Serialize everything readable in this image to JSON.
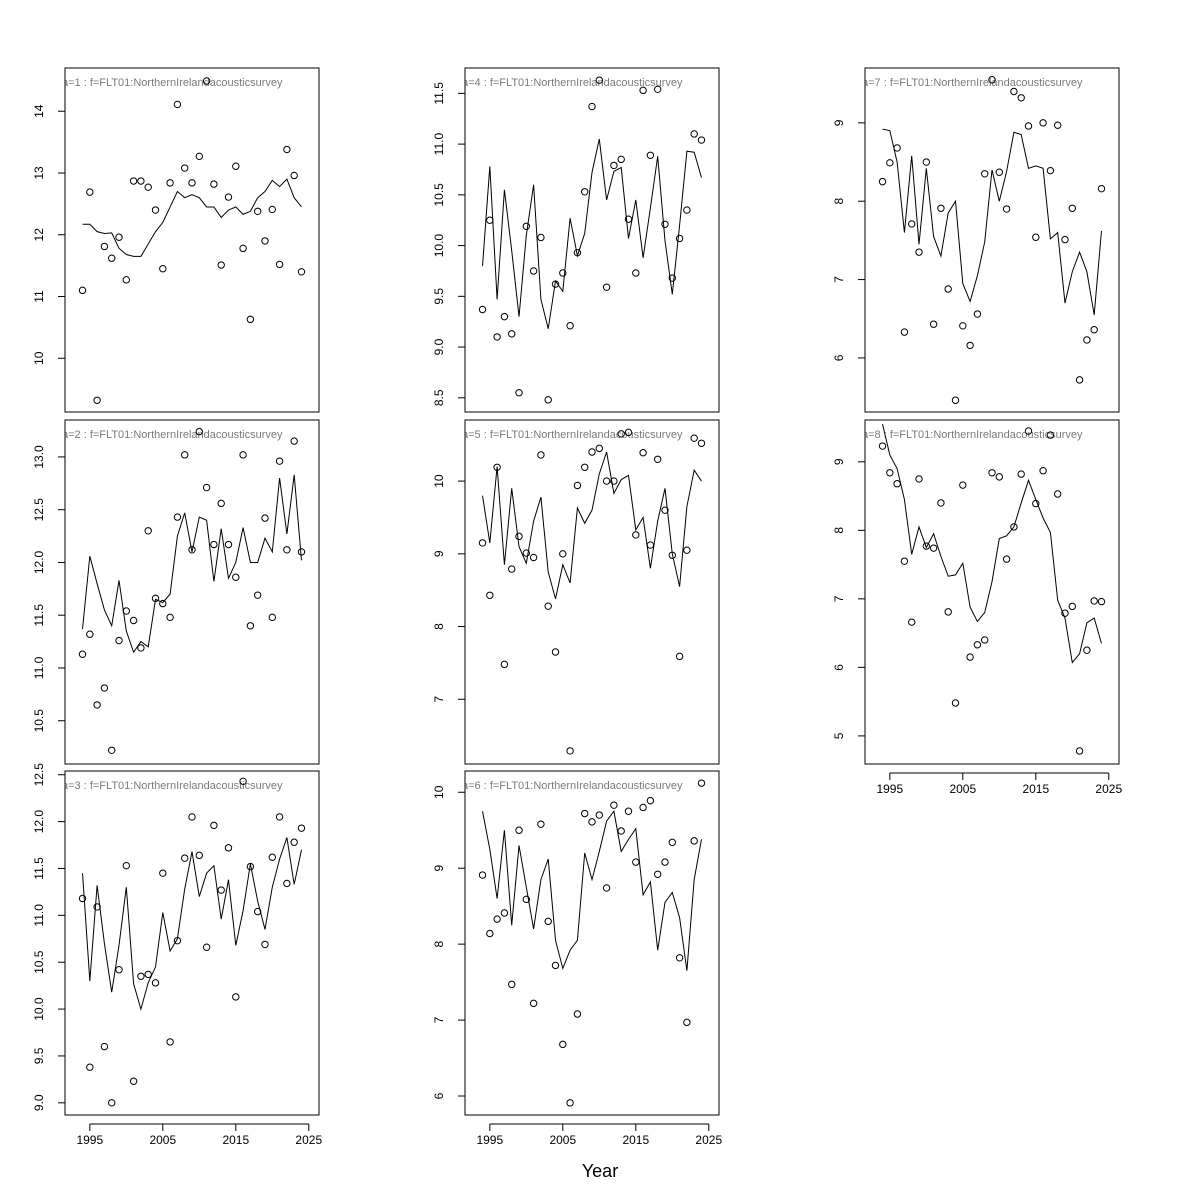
{
  "xlabel": "Year",
  "chart_data": [
    {
      "type": "line",
      "title": "a=1  :  f=FLT01:NorthernIrelandacousticsurvey",
      "x": [
        1994,
        1995,
        1996,
        1997,
        1998,
        1999,
        2000,
        2001,
        2002,
        2003,
        2004,
        2005,
        2006,
        2007,
        2008,
        2009,
        2010,
        2011,
        2012,
        2013,
        2014,
        2015,
        2016,
        2017,
        2018,
        2019,
        2020,
        2021,
        2022,
        2023,
        2024
      ],
      "series": [
        {
          "style": "points",
          "color": "#000000",
          "values": [
            11.1,
            12.69,
            9.32,
            11.81,
            11.62,
            11.96,
            11.27,
            12.87,
            12.87,
            12.77,
            12.4,
            11.45,
            12.84,
            14.11,
            13.08,
            12.84,
            13.27,
            14.49,
            12.82,
            11.51,
            12.61,
            13.11,
            11.78,
            10.63,
            12.38,
            11.9,
            12.41,
            11.52,
            13.38,
            12.96,
            11.4
          ]
        },
        {
          "style": "line",
          "color": "#000000",
          "values": [
            12.17,
            12.17,
            12.05,
            12.02,
            12.03,
            11.78,
            11.68,
            11.65,
            11.65,
            11.85,
            12.05,
            12.2,
            12.45,
            12.7,
            12.6,
            12.65,
            12.6,
            12.45,
            12.45,
            12.28,
            12.4,
            12.45,
            12.33,
            12.38,
            12.6,
            12.7,
            12.88,
            12.78,
            12.9,
            12.6,
            12.45
          ]
        }
      ],
      "xlim": [
        1991.6,
        2026.4
      ],
      "ylim": [
        9.13,
        14.7
      ],
      "yticks": [
        10,
        11,
        12,
        13,
        14
      ]
    },
    {
      "type": "line",
      "title": "a=2  :  f=FLT01:NorthernIrelandacousticsurvey",
      "x": [
        1994,
        1995,
        1996,
        1997,
        1998,
        1999,
        2000,
        2001,
        2002,
        2003,
        2004,
        2005,
        2006,
        2007,
        2008,
        2009,
        2010,
        2011,
        2012,
        2013,
        2014,
        2015,
        2016,
        2017,
        2018,
        2019,
        2020,
        2021,
        2022,
        2023,
        2024
      ],
      "series": [
        {
          "style": "points",
          "color": "#000000",
          "values": [
            11.13,
            11.32,
            10.65,
            10.81,
            10.22,
            11.26,
            11.54,
            11.45,
            11.19,
            12.3,
            11.66,
            11.61,
            11.48,
            12.43,
            13.02,
            12.12,
            13.24,
            12.71,
            12.17,
            12.56,
            12.17,
            11.86,
            13.02,
            11.4,
            11.69,
            12.42,
            11.48,
            12.96,
            12.12,
            13.15,
            12.1
          ]
        },
        {
          "style": "line",
          "color": "#000000",
          "values": [
            11.37,
            12.06,
            11.8,
            11.55,
            11.4,
            11.83,
            11.35,
            11.15,
            11.25,
            11.2,
            11.65,
            11.62,
            11.7,
            12.25,
            12.47,
            12.1,
            12.43,
            12.4,
            11.82,
            12.32,
            11.85,
            12.0,
            12.33,
            12.0,
            12.0,
            12.23,
            12.1,
            12.8,
            12.27,
            12.83,
            12.02
          ]
        }
      ],
      "xlim": [
        1991.6,
        2026.4
      ],
      "ylim": [
        10.09,
        13.35
      ],
      "yticks": [
        10.5,
        {
          "value": 11,
          "label": "11.0"
        },
        11.5,
        {
          "value": 12,
          "label": "12.0"
        },
        12.5,
        {
          "value": 13,
          "label": "13.0"
        }
      ]
    },
    {
      "type": "line",
      "title": "a=3  :  f=FLT01:NorthernIrelandacousticsurvey",
      "x": [
        1994,
        1995,
        1996,
        1997,
        1998,
        1999,
        2000,
        2001,
        2002,
        2003,
        2004,
        2005,
        2006,
        2007,
        2008,
        2009,
        2010,
        2011,
        2012,
        2013,
        2014,
        2015,
        2016,
        2017,
        2018,
        2019,
        2020,
        2021,
        2022,
        2023,
        2024
      ],
      "series": [
        {
          "style": "points",
          "color": "#000000",
          "values": [
            11.18,
            9.38,
            11.09,
            9.6,
            9.0,
            10.42,
            11.53,
            9.23,
            10.35,
            10.37,
            10.28,
            11.45,
            9.65,
            10.73,
            11.61,
            12.05,
            11.64,
            10.66,
            11.96,
            11.27,
            11.72,
            10.13,
            12.43,
            11.52,
            11.04,
            10.69,
            11.62,
            12.05,
            11.34,
            11.78,
            11.93
          ]
        },
        {
          "style": "line",
          "color": "#000000",
          "values": [
            11.45,
            10.3,
            11.32,
            10.7,
            10.18,
            10.68,
            11.3,
            10.27,
            10.0,
            10.28,
            10.45,
            11.03,
            10.62,
            10.75,
            11.28,
            11.68,
            11.2,
            11.45,
            11.53,
            10.96,
            11.38,
            10.68,
            11.05,
            11.55,
            11.15,
            10.85,
            11.3,
            11.6,
            11.83,
            11.33,
            11.7
          ]
        }
      ],
      "xlim": [
        1991.6,
        2026.4
      ],
      "ylim": [
        8.87,
        12.54
      ],
      "yticks": [
        {
          "value": 9,
          "label": "9.0"
        },
        9.5,
        {
          "value": 10,
          "label": "10.0"
        },
        10.5,
        {
          "value": 11,
          "label": "11.0"
        },
        11.5,
        {
          "value": 12,
          "label": "12.0"
        },
        12.5
      ],
      "xticks": [
        1995,
        2005,
        2015,
        2025
      ]
    },
    {
      "type": "line",
      "title": "a=4  :  f=FLT01:NorthernIrelandacousticsurvey",
      "x": [
        1994,
        1995,
        1996,
        1997,
        1998,
        1999,
        2000,
        2001,
        2002,
        2003,
        2004,
        2005,
        2006,
        2007,
        2008,
        2009,
        2010,
        2011,
        2012,
        2013,
        2014,
        2015,
        2016,
        2017,
        2018,
        2019,
        2020,
        2021,
        2022,
        2023,
        2024
      ],
      "series": [
        {
          "style": "points",
          "color": "#000000",
          "values": [
            9.37,
            10.25,
            9.1,
            9.3,
            9.13,
            8.55,
            10.19,
            9.75,
            10.08,
            8.48,
            9.62,
            9.73,
            9.21,
            9.93,
            10.53,
            11.37,
            11.63,
            9.59,
            10.79,
            10.85,
            10.26,
            9.73,
            11.53,
            10.89,
            11.54,
            10.21,
            9.68,
            10.07,
            10.35,
            11.1,
            11.04
          ]
        },
        {
          "style": "line",
          "color": "#000000",
          "values": [
            9.8,
            10.78,
            9.47,
            10.55,
            9.95,
            9.3,
            10.1,
            10.6,
            9.47,
            9.18,
            9.65,
            9.55,
            10.27,
            9.9,
            10.12,
            10.72,
            11.05,
            10.45,
            10.73,
            10.77,
            10.07,
            10.45,
            9.88,
            10.37,
            10.88,
            10.05,
            9.52,
            10.2,
            10.93,
            10.92,
            10.67
          ]
        }
      ],
      "xlim": [
        1991.6,
        2026.4
      ],
      "ylim": [
        8.36,
        11.75
      ],
      "yticks": [
        8.5,
        {
          "value": 9,
          "label": "9.0"
        },
        9.5,
        {
          "value": 10,
          "label": "10.0"
        },
        10.5,
        {
          "value": 11,
          "label": "11.0"
        },
        11.5
      ]
    },
    {
      "type": "line",
      "title": "a=5  :  f=FLT01:NorthernIrelandacousticsurvey",
      "x": [
        1994,
        1995,
        1996,
        1997,
        1998,
        1999,
        2000,
        2001,
        2002,
        2003,
        2004,
        2005,
        2006,
        2007,
        2008,
        2009,
        2010,
        2011,
        2012,
        2013,
        2014,
        2015,
        2016,
        2017,
        2018,
        2019,
        2020,
        2021,
        2022,
        2023,
        2024
      ],
      "series": [
        {
          "style": "points",
          "color": "#000000",
          "values": [
            9.15,
            8.43,
            10.19,
            7.48,
            8.79,
            9.24,
            9.01,
            8.95,
            10.36,
            8.28,
            7.65,
            9.0,
            6.29,
            9.94,
            10.19,
            10.4,
            10.45,
            10.0,
            10.0,
            10.65,
            10.67,
            9.26,
            10.39,
            9.12,
            10.3,
            9.6,
            8.98,
            7.59,
            9.05,
            10.59,
            10.52
          ]
        },
        {
          "style": "line",
          "color": "#000000",
          "values": [
            9.8,
            9.15,
            10.2,
            8.85,
            9.9,
            9.1,
            8.87,
            9.45,
            9.78,
            8.75,
            8.38,
            8.85,
            8.6,
            9.63,
            9.42,
            9.6,
            10.1,
            10.4,
            9.83,
            10.02,
            10.08,
            9.33,
            9.5,
            8.8,
            9.45,
            9.9,
            9.0,
            8.55,
            9.65,
            10.15,
            10.0
          ]
        }
      ],
      "xlim": [
        1991.6,
        2026.4
      ],
      "ylim": [
        6.11,
        10.84
      ],
      "yticks": [
        7,
        8,
        9,
        10
      ]
    },
    {
      "type": "line",
      "title": "a=6  :  f=FLT01:NorthernIrelandacousticsurvey",
      "x": [
        1994,
        1995,
        1996,
        1997,
        1998,
        1999,
        2000,
        2001,
        2002,
        2003,
        2004,
        2005,
        2006,
        2007,
        2008,
        2009,
        2010,
        2011,
        2012,
        2013,
        2014,
        2015,
        2016,
        2017,
        2018,
        2019,
        2020,
        2021,
        2022,
        2023,
        2024
      ],
      "series": [
        {
          "style": "points",
          "color": "#000000",
          "values": [
            8.91,
            8.14,
            8.33,
            8.41,
            7.47,
            9.5,
            8.59,
            7.22,
            9.58,
            8.3,
            7.72,
            6.68,
            5.91,
            7.08,
            9.72,
            9.61,
            9.7,
            8.74,
            9.83,
            9.49,
            9.75,
            9.08,
            9.8,
            9.89,
            8.92,
            9.08,
            9.34,
            7.82,
            6.97,
            9.36,
            10.12
          ]
        },
        {
          "style": "line",
          "color": "#000000",
          "values": [
            9.75,
            9.25,
            8.6,
            9.5,
            8.25,
            9.3,
            8.75,
            8.2,
            8.85,
            9.12,
            8.05,
            7.68,
            7.92,
            8.05,
            9.2,
            8.85,
            9.22,
            9.62,
            9.75,
            9.22,
            9.38,
            9.52,
            8.65,
            8.82,
            7.92,
            8.55,
            8.68,
            8.35,
            7.65,
            8.85,
            9.38
          ]
        }
      ],
      "xlim": [
        1991.6,
        2026.4
      ],
      "ylim": [
        5.75,
        10.28
      ],
      "yticks": [
        6,
        7,
        8,
        9,
        10
      ],
      "xticks": [
        1995,
        2005,
        2015,
        2025
      ]
    },
    {
      "type": "line",
      "title": "a=7  :  f=FLT01:NorthernIrelandacousticsurvey",
      "x": [
        1994,
        1995,
        1996,
        1997,
        1998,
        1999,
        2000,
        2001,
        2002,
        2003,
        2004,
        2005,
        2006,
        2007,
        2008,
        2009,
        2010,
        2011,
        2012,
        2013,
        2014,
        2015,
        2016,
        2017,
        2018,
        2019,
        2020,
        2021,
        2022,
        2023,
        2024
      ],
      "series": [
        {
          "style": "points",
          "color": "#000000",
          "values": [
            8.25,
            8.49,
            8.68,
            6.33,
            7.71,
            7.35,
            8.5,
            6.43,
            7.91,
            6.88,
            5.46,
            6.41,
            6.16,
            6.56,
            8.35,
            9.55,
            8.37,
            7.9,
            9.4,
            9.32,
            8.96,
            7.54,
            9.0,
            8.39,
            8.97,
            7.51,
            7.91,
            5.72,
            6.23,
            6.36,
            8.16
          ]
        },
        {
          "style": "line",
          "color": "#000000",
          "values": [
            8.92,
            8.9,
            8.5,
            7.6,
            8.58,
            7.45,
            8.42,
            7.55,
            7.3,
            7.85,
            8.0,
            6.95,
            6.72,
            7.05,
            7.48,
            8.4,
            8.0,
            8.38,
            8.88,
            8.85,
            8.42,
            8.45,
            8.42,
            7.52,
            7.6,
            6.7,
            7.1,
            7.35,
            7.1,
            6.55,
            7.62
          ]
        }
      ],
      "xlim": [
        1991.6,
        2026.4
      ],
      "ylim": [
        5.31,
        9.7
      ],
      "yticks": [
        6,
        7,
        8,
        9
      ]
    },
    {
      "type": "line",
      "title": "a=8  :  f=FLT01:NorthernIrelandacousticsurvey",
      "x": [
        1994,
        1995,
        1996,
        1997,
        1998,
        1999,
        2000,
        2001,
        2002,
        2003,
        2004,
        2005,
        2006,
        2007,
        2008,
        2009,
        2010,
        2011,
        2012,
        2013,
        2014,
        2015,
        2016,
        2017,
        2018,
        2019,
        2020,
        2021,
        2022,
        2023,
        2024
      ],
      "series": [
        {
          "style": "points",
          "color": "#000000",
          "values": [
            9.23,
            8.84,
            8.68,
            7.55,
            6.66,
            8.75,
            7.77,
            7.74,
            8.4,
            6.81,
            5.48,
            8.66,
            6.15,
            6.33,
            6.4,
            8.84,
            8.78,
            7.58,
            8.05,
            8.82,
            9.45,
            8.39,
            8.87,
            9.39,
            8.53,
            6.79,
            6.89,
            4.78,
            6.25,
            6.97,
            6.96
          ]
        },
        {
          "style": "line",
          "color": "#000000",
          "values": [
            9.55,
            9.1,
            8.9,
            8.45,
            7.65,
            8.05,
            7.75,
            7.95,
            7.62,
            7.33,
            7.35,
            7.52,
            6.88,
            6.67,
            6.8,
            7.25,
            7.88,
            7.92,
            8.05,
            8.4,
            8.73,
            8.45,
            8.18,
            7.97,
            6.98,
            6.72,
            6.07,
            6.2,
            6.65,
            6.72,
            6.35
          ]
        }
      ],
      "xlim": [
        1991.6,
        2026.4
      ],
      "ylim": [
        4.59,
        9.61
      ],
      "yticks": [
        5,
        6,
        7,
        8,
        9
      ],
      "xticks": [
        1995,
        2005,
        2015,
        2025
      ]
    }
  ]
}
